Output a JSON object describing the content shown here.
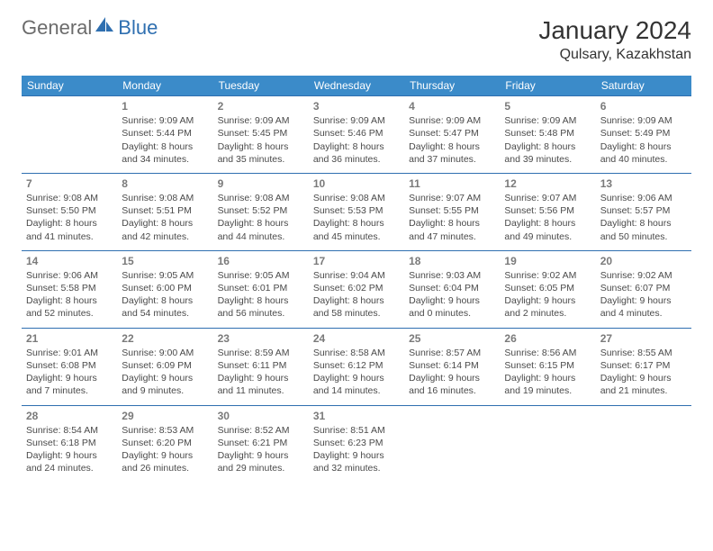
{
  "brand": {
    "part1": "General",
    "part2": "Blue"
  },
  "title": "January 2024",
  "location": "Qulsary, Kazakhstan",
  "colors": {
    "header_bg": "#3b8bc9",
    "header_text": "#ffffff",
    "week_border": "#2f6fb0",
    "daynum": "#7a7a7a",
    "body_text": "#4a4a4a",
    "brand_gray": "#6b6b6b",
    "brand_blue": "#2f6fb0",
    "bg": "#ffffff"
  },
  "typography": {
    "month_title_fontsize": 28,
    "location_fontsize": 16,
    "weekday_fontsize": 12,
    "cell_fontsize": 10.5,
    "daynum_fontsize": 12
  },
  "weekdays": [
    "Sunday",
    "Monday",
    "Tuesday",
    "Wednesday",
    "Thursday",
    "Friday",
    "Saturday"
  ],
  "weeks": [
    [
      null,
      {
        "d": "1",
        "sr": "Sunrise: 9:09 AM",
        "ss": "Sunset: 5:44 PM",
        "dl1": "Daylight: 8 hours",
        "dl2": "and 34 minutes."
      },
      {
        "d": "2",
        "sr": "Sunrise: 9:09 AM",
        "ss": "Sunset: 5:45 PM",
        "dl1": "Daylight: 8 hours",
        "dl2": "and 35 minutes."
      },
      {
        "d": "3",
        "sr": "Sunrise: 9:09 AM",
        "ss": "Sunset: 5:46 PM",
        "dl1": "Daylight: 8 hours",
        "dl2": "and 36 minutes."
      },
      {
        "d": "4",
        "sr": "Sunrise: 9:09 AM",
        "ss": "Sunset: 5:47 PM",
        "dl1": "Daylight: 8 hours",
        "dl2": "and 37 minutes."
      },
      {
        "d": "5",
        "sr": "Sunrise: 9:09 AM",
        "ss": "Sunset: 5:48 PM",
        "dl1": "Daylight: 8 hours",
        "dl2": "and 39 minutes."
      },
      {
        "d": "6",
        "sr": "Sunrise: 9:09 AM",
        "ss": "Sunset: 5:49 PM",
        "dl1": "Daylight: 8 hours",
        "dl2": "and 40 minutes."
      }
    ],
    [
      {
        "d": "7",
        "sr": "Sunrise: 9:08 AM",
        "ss": "Sunset: 5:50 PM",
        "dl1": "Daylight: 8 hours",
        "dl2": "and 41 minutes."
      },
      {
        "d": "8",
        "sr": "Sunrise: 9:08 AM",
        "ss": "Sunset: 5:51 PM",
        "dl1": "Daylight: 8 hours",
        "dl2": "and 42 minutes."
      },
      {
        "d": "9",
        "sr": "Sunrise: 9:08 AM",
        "ss": "Sunset: 5:52 PM",
        "dl1": "Daylight: 8 hours",
        "dl2": "and 44 minutes."
      },
      {
        "d": "10",
        "sr": "Sunrise: 9:08 AM",
        "ss": "Sunset: 5:53 PM",
        "dl1": "Daylight: 8 hours",
        "dl2": "and 45 minutes."
      },
      {
        "d": "11",
        "sr": "Sunrise: 9:07 AM",
        "ss": "Sunset: 5:55 PM",
        "dl1": "Daylight: 8 hours",
        "dl2": "and 47 minutes."
      },
      {
        "d": "12",
        "sr": "Sunrise: 9:07 AM",
        "ss": "Sunset: 5:56 PM",
        "dl1": "Daylight: 8 hours",
        "dl2": "and 49 minutes."
      },
      {
        "d": "13",
        "sr": "Sunrise: 9:06 AM",
        "ss": "Sunset: 5:57 PM",
        "dl1": "Daylight: 8 hours",
        "dl2": "and 50 minutes."
      }
    ],
    [
      {
        "d": "14",
        "sr": "Sunrise: 9:06 AM",
        "ss": "Sunset: 5:58 PM",
        "dl1": "Daylight: 8 hours",
        "dl2": "and 52 minutes."
      },
      {
        "d": "15",
        "sr": "Sunrise: 9:05 AM",
        "ss": "Sunset: 6:00 PM",
        "dl1": "Daylight: 8 hours",
        "dl2": "and 54 minutes."
      },
      {
        "d": "16",
        "sr": "Sunrise: 9:05 AM",
        "ss": "Sunset: 6:01 PM",
        "dl1": "Daylight: 8 hours",
        "dl2": "and 56 minutes."
      },
      {
        "d": "17",
        "sr": "Sunrise: 9:04 AM",
        "ss": "Sunset: 6:02 PM",
        "dl1": "Daylight: 8 hours",
        "dl2": "and 58 minutes."
      },
      {
        "d": "18",
        "sr": "Sunrise: 9:03 AM",
        "ss": "Sunset: 6:04 PM",
        "dl1": "Daylight: 9 hours",
        "dl2": "and 0 minutes."
      },
      {
        "d": "19",
        "sr": "Sunrise: 9:02 AM",
        "ss": "Sunset: 6:05 PM",
        "dl1": "Daylight: 9 hours",
        "dl2": "and 2 minutes."
      },
      {
        "d": "20",
        "sr": "Sunrise: 9:02 AM",
        "ss": "Sunset: 6:07 PM",
        "dl1": "Daylight: 9 hours",
        "dl2": "and 4 minutes."
      }
    ],
    [
      {
        "d": "21",
        "sr": "Sunrise: 9:01 AM",
        "ss": "Sunset: 6:08 PM",
        "dl1": "Daylight: 9 hours",
        "dl2": "and 7 minutes."
      },
      {
        "d": "22",
        "sr": "Sunrise: 9:00 AM",
        "ss": "Sunset: 6:09 PM",
        "dl1": "Daylight: 9 hours",
        "dl2": "and 9 minutes."
      },
      {
        "d": "23",
        "sr": "Sunrise: 8:59 AM",
        "ss": "Sunset: 6:11 PM",
        "dl1": "Daylight: 9 hours",
        "dl2": "and 11 minutes."
      },
      {
        "d": "24",
        "sr": "Sunrise: 8:58 AM",
        "ss": "Sunset: 6:12 PM",
        "dl1": "Daylight: 9 hours",
        "dl2": "and 14 minutes."
      },
      {
        "d": "25",
        "sr": "Sunrise: 8:57 AM",
        "ss": "Sunset: 6:14 PM",
        "dl1": "Daylight: 9 hours",
        "dl2": "and 16 minutes."
      },
      {
        "d": "26",
        "sr": "Sunrise: 8:56 AM",
        "ss": "Sunset: 6:15 PM",
        "dl1": "Daylight: 9 hours",
        "dl2": "and 19 minutes."
      },
      {
        "d": "27",
        "sr": "Sunrise: 8:55 AM",
        "ss": "Sunset: 6:17 PM",
        "dl1": "Daylight: 9 hours",
        "dl2": "and 21 minutes."
      }
    ],
    [
      {
        "d": "28",
        "sr": "Sunrise: 8:54 AM",
        "ss": "Sunset: 6:18 PM",
        "dl1": "Daylight: 9 hours",
        "dl2": "and 24 minutes."
      },
      {
        "d": "29",
        "sr": "Sunrise: 8:53 AM",
        "ss": "Sunset: 6:20 PM",
        "dl1": "Daylight: 9 hours",
        "dl2": "and 26 minutes."
      },
      {
        "d": "30",
        "sr": "Sunrise: 8:52 AM",
        "ss": "Sunset: 6:21 PM",
        "dl1": "Daylight: 9 hours",
        "dl2": "and 29 minutes."
      },
      {
        "d": "31",
        "sr": "Sunrise: 8:51 AM",
        "ss": "Sunset: 6:23 PM",
        "dl1": "Daylight: 9 hours",
        "dl2": "and 32 minutes."
      },
      null,
      null,
      null
    ]
  ]
}
